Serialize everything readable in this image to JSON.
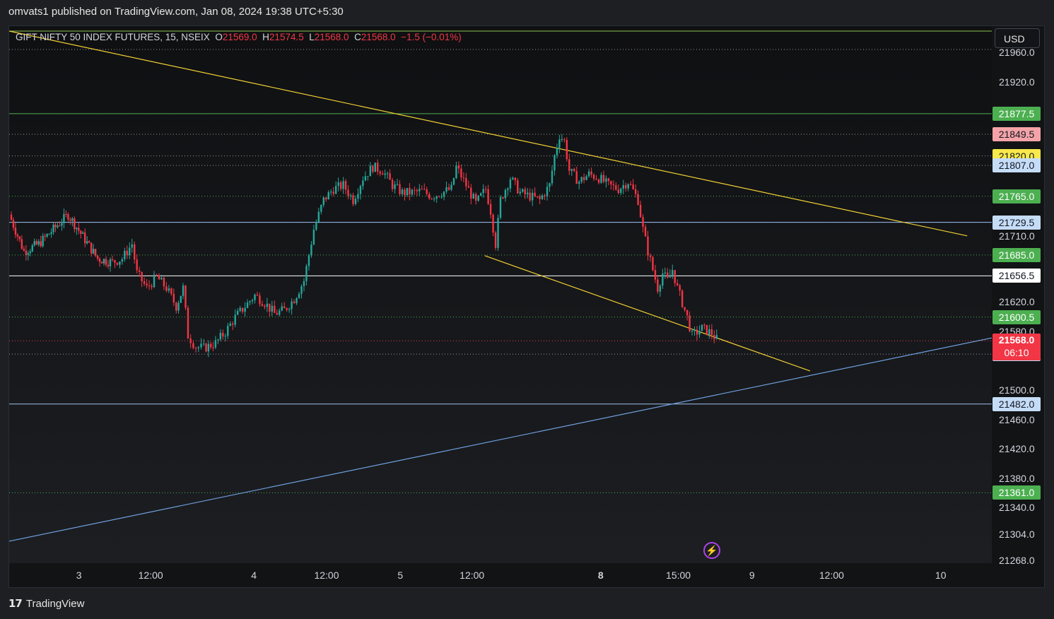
{
  "header": {
    "text": "omvats1 published on TradingView.com, Jan 08, 2024 19:38 UTC+5:30"
  },
  "legend": {
    "symbol": "GIFT NIFTY 50 INDEX FUTURES, 15, NSEIX",
    "open_label": "O",
    "open": "21569.0",
    "high_label": "H",
    "high": "21574.5",
    "low_label": "L",
    "low": "21568.0",
    "close_label": "C",
    "close": "21568.0",
    "change": "−1.5 (−0.01%)"
  },
  "currency_button": "USD",
  "footer": {
    "logo_text": "TradingView"
  },
  "colors": {
    "up": "#26a69a",
    "down": "#f23645",
    "trendline": "#f0d033",
    "support_line": "#6f9fde",
    "green_level": "#4caf50"
  },
  "chart_data": {
    "type": "candlestick",
    "symbol": "GIFT NIFTY 50 INDEX FUTURES",
    "interval": "15",
    "exchange": "NSEIX",
    "ylim": [
      21268,
      21990
    ],
    "y_ticks": [
      "21960.0",
      "21920.0",
      "21710.0",
      "21620.0",
      "21580.0",
      "21500.0",
      "21460.0",
      "21420.0",
      "21380.0",
      "21340.0",
      "21304.0",
      "21268.0"
    ],
    "x_ticks": [
      {
        "label": "3",
        "bold": false,
        "pos": 0.071
      },
      {
        "label": "12:00",
        "bold": false,
        "pos": 0.144
      },
      {
        "label": "4",
        "bold": false,
        "pos": 0.249
      },
      {
        "label": "12:00",
        "bold": false,
        "pos": 0.323
      },
      {
        "label": "5",
        "bold": false,
        "pos": 0.398
      },
      {
        "label": "12:00",
        "bold": false,
        "pos": 0.471
      },
      {
        "label": "8",
        "bold": true,
        "pos": 0.602
      },
      {
        "label": "15:00",
        "bold": false,
        "pos": 0.681
      },
      {
        "label": "9",
        "bold": false,
        "pos": 0.756
      },
      {
        "label": "12:00",
        "bold": false,
        "pos": 0.837
      },
      {
        "label": "10",
        "bold": false,
        "pos": 0.948
      }
    ],
    "price_levels": [
      {
        "label": "21877.5",
        "value": 21877.5,
        "bg": "#4caf50",
        "fg": "#ffffff",
        "line": "#4caf50",
        "style": "solid"
      },
      {
        "label": "21849.5",
        "value": 21849.5,
        "bg": "#f4a3a8",
        "fg": "#131722",
        "line": "#9598a1",
        "style": "dotted"
      },
      {
        "label": "21820.0",
        "value": 21820.0,
        "bg": "#f7e94b",
        "fg": "#131722",
        "line": "#9598a1",
        "style": "dotted"
      },
      {
        "label": "21807.0",
        "value": 21807.0,
        "bg": "#c5dcf7",
        "fg": "#131722",
        "line": "#9598a1",
        "style": "dotted"
      },
      {
        "label": "21765.0",
        "value": 21765.0,
        "bg": "#4caf50",
        "fg": "#ffffff",
        "line": "#4caf50",
        "style": "dotted"
      },
      {
        "label": "21729.5",
        "value": 21729.5,
        "bg": "#c5dcf7",
        "fg": "#131722",
        "line": "#9fc3f0",
        "style": "solid"
      },
      {
        "label": "21685.0",
        "value": 21685.0,
        "bg": "#4caf50",
        "fg": "#ffffff",
        "line": "#4caf50",
        "style": "dotted"
      },
      {
        "label": "21656.5",
        "value": 21656.5,
        "bg": "#ffffff",
        "fg": "#131722",
        "line": "#ffffff",
        "style": "solid"
      },
      {
        "label": "21600.5",
        "value": 21600.5,
        "bg": "#4caf50",
        "fg": "#ffffff",
        "line": "#4caf50",
        "style": "dotted"
      },
      {
        "label": "21550.0",
        "value": 21550.0,
        "bg": "#c5dcf7",
        "fg": "#131722",
        "line": "#9598a1",
        "style": "dotted"
      },
      {
        "label": "21482.0",
        "value": 21482.0,
        "bg": "#c5dcf7",
        "fg": "#131722",
        "line": "#9fc3f0",
        "style": "solid"
      },
      {
        "label": "21361.0",
        "value": 21361.0,
        "bg": "#4caf50",
        "fg": "#ffffff",
        "line": "#4caf50",
        "style": "dotted"
      }
    ],
    "current_price": {
      "label": "21568.0",
      "countdown": "06:10",
      "value": 21568.0,
      "bg": "#f23645"
    },
    "extra_levels": [
      {
        "value": 21990,
        "color": "#8bc34a",
        "style": "solid"
      },
      {
        "value": 21965,
        "color": "#9598a1",
        "style": "dotted"
      }
    ],
    "trendlines": [
      {
        "name": "upper-resistance-trendline",
        "color": "#f0d033",
        "points": [
          [
            0.0,
            21990
          ],
          [
            0.975,
            21711
          ]
        ]
      },
      {
        "name": "lower-channel-trendline",
        "color": "#f0d033",
        "points": [
          [
            0.484,
            21684
          ],
          [
            0.815,
            21527
          ]
        ]
      },
      {
        "name": "rising-support-trendline",
        "color": "#6f9fde",
        "points": [
          [
            0.0,
            21295
          ],
          [
            1.0,
            21572
          ]
        ]
      }
    ],
    "price_path": [
      [
        0.0,
        21740
      ],
      [
        0.015,
        21690
      ],
      [
        0.03,
        21700
      ],
      [
        0.045,
        21720
      ],
      [
        0.06,
        21740
      ],
      [
        0.075,
        21710
      ],
      [
        0.09,
        21680
      ],
      [
        0.105,
        21675
      ],
      [
        0.115,
        21680
      ],
      [
        0.125,
        21700
      ],
      [
        0.13,
        21660
      ],
      [
        0.14,
        21640
      ],
      [
        0.15,
        21655
      ],
      [
        0.16,
        21640
      ],
      [
        0.17,
        21615
      ],
      [
        0.177,
        21640
      ],
      [
        0.182,
        21575
      ],
      [
        0.19,
        21560
      ],
      [
        0.198,
        21558
      ],
      [
        0.21,
        21565
      ],
      [
        0.22,
        21580
      ],
      [
        0.23,
        21600
      ],
      [
        0.24,
        21615
      ],
      [
        0.25,
        21630
      ],
      [
        0.26,
        21620
      ],
      [
        0.27,
        21605
      ],
      [
        0.28,
        21610
      ],
      [
        0.29,
        21625
      ],
      [
        0.3,
        21650
      ],
      [
        0.31,
        21720
      ],
      [
        0.32,
        21760
      ],
      [
        0.33,
        21775
      ],
      [
        0.34,
        21780
      ],
      [
        0.35,
        21760
      ],
      [
        0.36,
        21790
      ],
      [
        0.37,
        21805
      ],
      [
        0.38,
        21800
      ],
      [
        0.39,
        21780
      ],
      [
        0.4,
        21770
      ],
      [
        0.41,
        21770
      ],
      [
        0.42,
        21772
      ],
      [
        0.43,
        21765
      ],
      [
        0.44,
        21770
      ],
      [
        0.45,
        21775
      ],
      [
        0.455,
        21805
      ],
      [
        0.465,
        21780
      ],
      [
        0.475,
        21755
      ],
      [
        0.485,
        21775
      ],
      [
        0.49,
        21745
      ],
      [
        0.495,
        21700
      ],
      [
        0.5,
        21760
      ],
      [
        0.51,
        21790
      ],
      [
        0.52,
        21770
      ],
      [
        0.53,
        21765
      ],
      [
        0.54,
        21760
      ],
      [
        0.55,
        21780
      ],
      [
        0.555,
        21820
      ],
      [
        0.56,
        21848
      ],
      [
        0.565,
        21840
      ],
      [
        0.57,
        21800
      ],
      [
        0.58,
        21785
      ],
      [
        0.59,
        21795
      ],
      [
        0.6,
        21790
      ],
      [
        0.61,
        21780
      ],
      [
        0.62,
        21775
      ],
      [
        0.63,
        21785
      ],
      [
        0.64,
        21760
      ],
      [
        0.645,
        21720
      ],
      [
        0.65,
        21690
      ],
      [
        0.655,
        21665
      ],
      [
        0.66,
        21640
      ],
      [
        0.665,
        21660
      ],
      [
        0.67,
        21650
      ],
      [
        0.675,
        21665
      ],
      [
        0.68,
        21640
      ],
      [
        0.685,
        21620
      ],
      [
        0.69,
        21600
      ],
      [
        0.695,
        21575
      ],
      [
        0.7,
        21580
      ],
      [
        0.705,
        21585
      ],
      [
        0.71,
        21582
      ],
      [
        0.715,
        21578
      ],
      [
        0.72,
        21570
      ]
    ]
  }
}
